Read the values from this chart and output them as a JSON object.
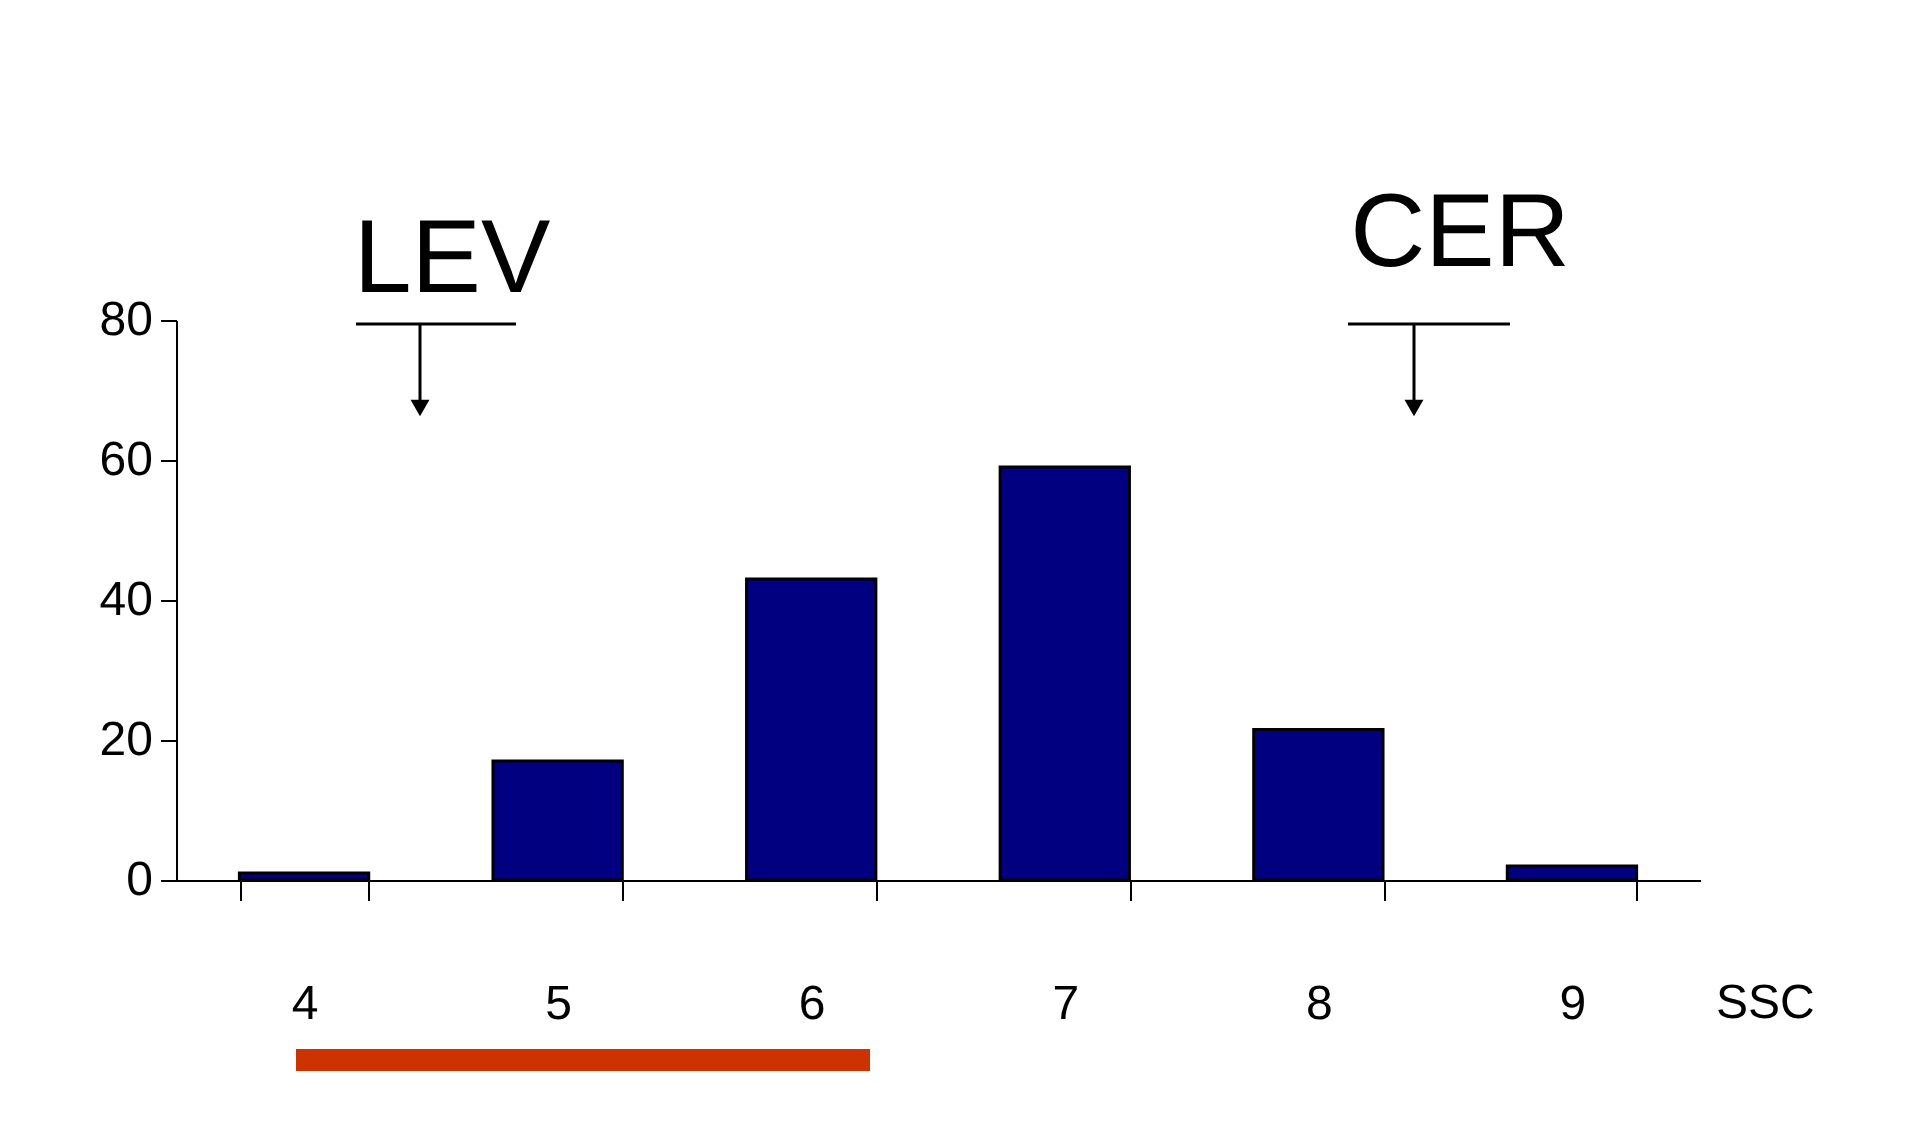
{
  "chart_data": {
    "type": "bar",
    "categories": [
      "4",
      "5",
      "6",
      "7",
      "8",
      "9"
    ],
    "values": [
      1,
      17,
      43,
      59,
      21.5,
      2
    ],
    "color": "#000080",
    "xlabel": "SSC",
    "ylim": [
      0,
      80
    ],
    "yticks": [
      0,
      20,
      40,
      60,
      80
    ],
    "annotations": [
      "LEV",
      "CER"
    ],
    "grid": false
  }
}
